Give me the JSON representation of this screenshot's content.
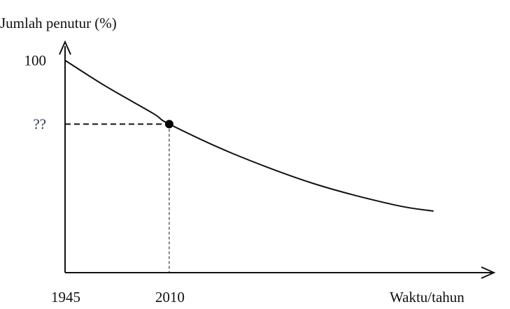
{
  "chart_data": {
    "type": "line",
    "title": "",
    "ylabel": "Jumlah penutur (%)",
    "xlabel": "Waktu/tahun",
    "y_tick_labels": [
      {
        "value": 100,
        "label": "100"
      },
      {
        "value": 70,
        "label": "??"
      }
    ],
    "x_tick_labels": [
      {
        "value": 1945,
        "label": "1945"
      },
      {
        "value": 2010,
        "label": "2010"
      }
    ],
    "xlim": [
      1945,
      2210
    ],
    "ylim": [
      0,
      110
    ],
    "series": [
      {
        "x": [
          1945,
          1970,
          2000,
          2010,
          2050,
          2100,
          2150,
          2175
        ],
        "y": [
          100,
          88,
          75,
          70,
          56,
          42,
          32,
          29
        ]
      }
    ],
    "highlight_point": {
      "x": 2010,
      "y": 70
    },
    "grid": false,
    "colors": {
      "line": "#111111",
      "point": "#000000",
      "unknown_label": "#2a3b52"
    }
  }
}
